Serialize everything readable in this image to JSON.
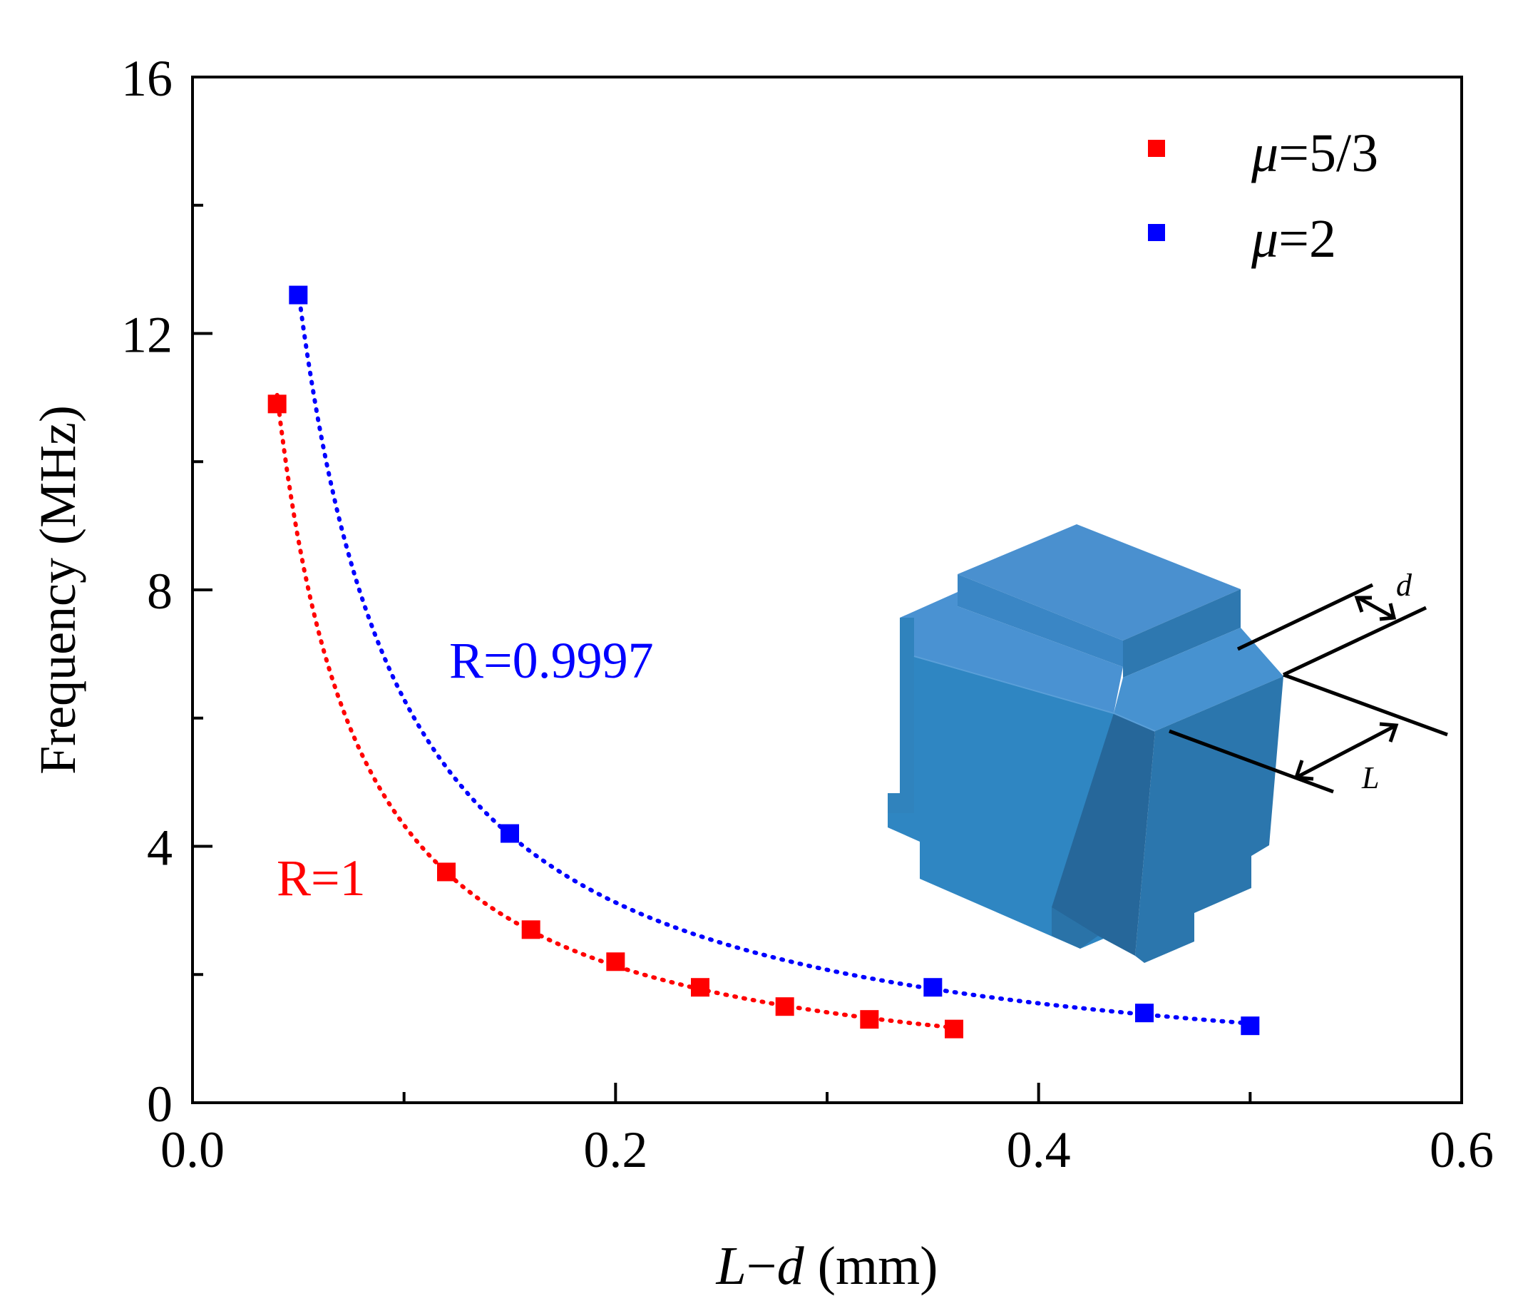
{
  "chart_data": {
    "type": "scatter",
    "xlabel_parts": [
      "L",
      "−",
      "d",
      " (mm)"
    ],
    "ylabel": "Frequency (MHz)",
    "xlim": [
      0.0,
      0.6
    ],
    "ylim": [
      0,
      16
    ],
    "xticks": [
      "0.0",
      "0.2",
      "0.4",
      "0.6"
    ],
    "yticks": [
      "0",
      "4",
      "8",
      "12",
      "16"
    ],
    "legend_position": "top-right",
    "series": [
      {
        "name": "μ=5/3",
        "name_parts": [
          "μ",
          "=5/3"
        ],
        "color": "#ff0000",
        "marker": "square",
        "fit_line": "dotted",
        "annotation": "R=1",
        "x": [
          0.04,
          0.12,
          0.16,
          0.2,
          0.24,
          0.28,
          0.32,
          0.36
        ],
        "y": [
          10.9,
          3.6,
          2.7,
          2.2,
          1.8,
          1.5,
          1.3,
          1.15
        ]
      },
      {
        "name": "μ=2",
        "name_parts": [
          "μ",
          "=2"
        ],
        "color": "#0000ff",
        "marker": "square",
        "fit_line": "dotted",
        "annotation": "R=0.9997",
        "x": [
          0.05,
          0.15,
          0.35,
          0.45,
          0.5
        ],
        "y": [
          12.6,
          4.2,
          1.8,
          1.4,
          1.2
        ]
      }
    ],
    "inset": {
      "description_icon": "cube-structure-icon",
      "labels": {
        "d": "d",
        "L": "L"
      },
      "colors": {
        "top": "#4a90cf",
        "front": "#3083bd",
        "side": "#2a6fa0",
        "dark": "#245f8a"
      }
    }
  }
}
